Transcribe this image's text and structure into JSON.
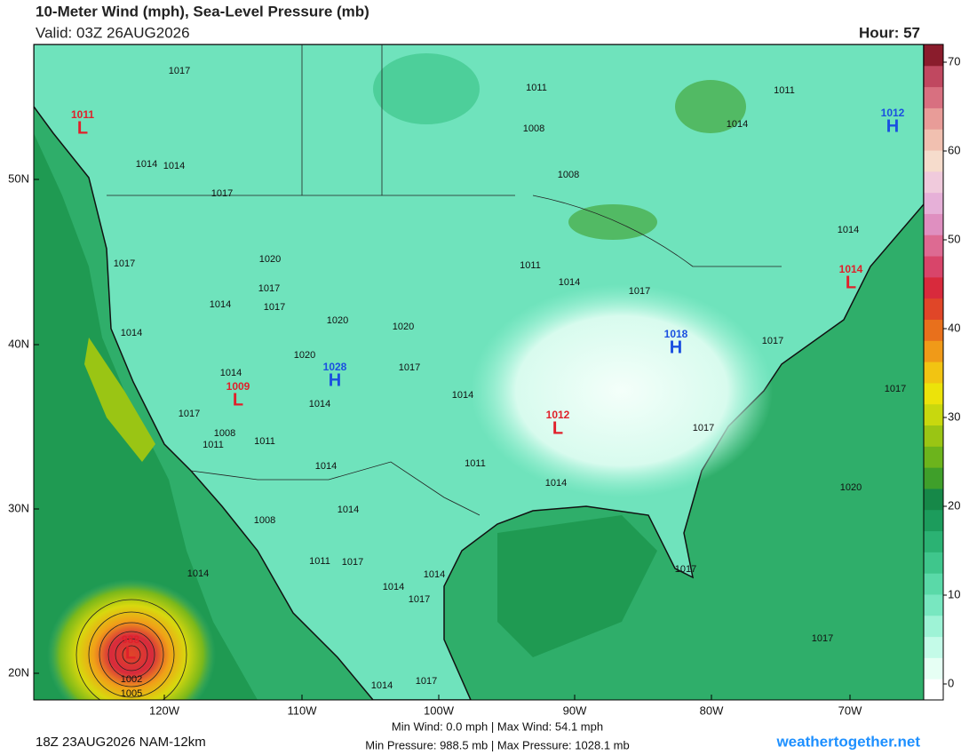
{
  "header": {
    "title": "10-Meter Wind (mph), Sea-Level Pressure (mb)",
    "valid": "Valid: 03Z 26AUG2026",
    "hour": "Hour: 57"
  },
  "map": {
    "lat_labels": [
      "50N",
      "40N",
      "30N",
      "20N"
    ],
    "lon_labels": [
      "120W",
      "110W",
      "100W",
      "90W",
      "80W",
      "70W"
    ],
    "isobar_labels": [
      "1017",
      "1011",
      "1011",
      "1008",
      "1014",
      "1014",
      "1014",
      "1008",
      "1017",
      "1014",
      "1020",
      "1017",
      "1011",
      "1017",
      "1014",
      "1017",
      "1014",
      "1017",
      "1020",
      "1020",
      "1014",
      "1017",
      "1020",
      "1017",
      "1014",
      "1017",
      "1014",
      "1014",
      "1017",
      "1017",
      "1008",
      "1011",
      "1011",
      "1011",
      "1014",
      "1014",
      "1020",
      "1014",
      "1008",
      "1014",
      "1011",
      "1017",
      "1014",
      "1014",
      "1017",
      "1017",
      "1017",
      "1014",
      "1017",
      "1002",
      "1005"
    ],
    "centers": [
      {
        "type": "L",
        "value": "1011"
      },
      {
        "type": "L",
        "value": "1009"
      },
      {
        "type": "L",
        "value": "1012"
      },
      {
        "type": "L",
        "value": "1014"
      },
      {
        "type": "H",
        "value": "1012"
      },
      {
        "type": "H",
        "value": "1018"
      },
      {
        "type": "H",
        "value": "1028"
      },
      {
        "type": "L",
        "value": "988"
      }
    ]
  },
  "colorbar": {
    "ticks": [
      0,
      10,
      20,
      30,
      40,
      50,
      60,
      70
    ],
    "colors": [
      "#ffffff",
      "#e6fff4",
      "#c4fbe8",
      "#9ef3d6",
      "#78e7c0",
      "#5ad9a8",
      "#3fc68c",
      "#2bb273",
      "#1c9c5c",
      "#168848",
      "#3f9f2a",
      "#6cb41c",
      "#9ac514",
      "#c8d80e",
      "#ece30a",
      "#f2c412",
      "#f09a18",
      "#e8701c",
      "#e04628",
      "#d82a3c",
      "#d8456a",
      "#dd6a92",
      "#df8fc0",
      "#e6b0d8",
      "#f0cadc",
      "#f6dccc",
      "#f1c0b0",
      "#e89c98",
      "#d87080",
      "#c04860",
      "#8a1c2c"
    ]
  },
  "footer": {
    "run": "18Z 23AUG2026 NAM-12km",
    "wind": "Min Wind:  0.0 mph | Max Wind: 54.1 mph",
    "pressure": "Min Pressure: 988.5 mb | Max Pressure: 1028.1 mb",
    "site": "weathertogether.net"
  }
}
